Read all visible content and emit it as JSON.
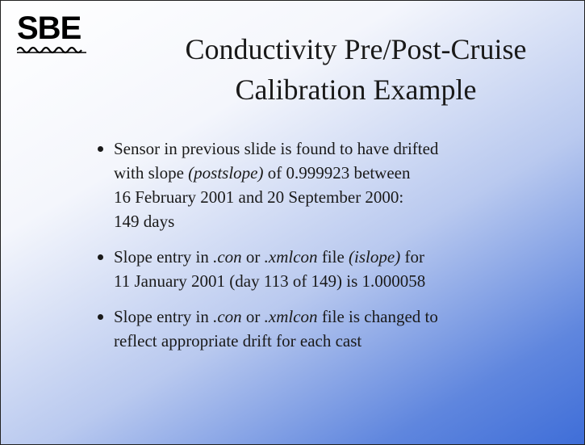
{
  "logo": "SBE",
  "title": [
    "Conductivity Pre/Post-Cruise",
    "Calibration Example"
  ],
  "bullets": [
    {
      "lines": [
        [
          {
            "text": "Sensor in previous slide is found to have drifted"
          }
        ],
        [
          {
            "text": "with slope "
          },
          {
            "text": "(postslope)",
            "italic": true
          },
          {
            "text": " of 0.999923 between"
          }
        ],
        [
          {
            "text": "16 February 2001 and 20 September 2000:"
          }
        ],
        [
          {
            "text": "149 days"
          }
        ]
      ]
    },
    {
      "lines": [
        [
          {
            "text": "Slope entry in "
          },
          {
            "text": ".con",
            "italic": true
          },
          {
            "text": " or "
          },
          {
            "text": ".xmlcon",
            "italic": true
          },
          {
            "text": " file "
          },
          {
            "text": "(islope)",
            "italic": true
          },
          {
            "text": " for"
          }
        ],
        [
          {
            "text": "11 January 2001 (day 113 of 149) is 1.000058"
          }
        ]
      ]
    },
    {
      "lines": [
        [
          {
            "text": "Slope entry in "
          },
          {
            "text": ".con",
            "italic": true
          },
          {
            "text": " or "
          },
          {
            "text": ".xmlcon",
            "italic": true
          },
          {
            "text": " file is changed to"
          }
        ],
        [
          {
            "text": "reflect appropriate drift for each cast"
          }
        ]
      ]
    }
  ]
}
